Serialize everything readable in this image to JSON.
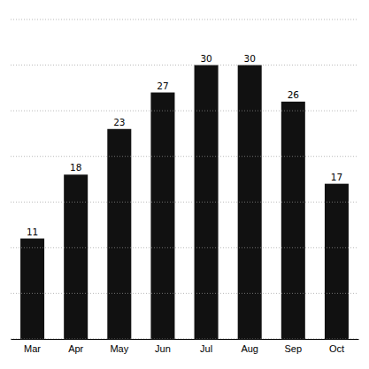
{
  "chart_data": {
    "type": "bar",
    "categories": [
      "Mar",
      "Apr",
      "May",
      "Jun",
      "Jul",
      "Aug",
      "Sep",
      "Oct"
    ],
    "values": [
      11,
      18,
      23,
      27,
      30,
      30,
      26,
      17
    ],
    "color": "#111111",
    "ylim": [
      0,
      35
    ],
    "yticks": [
      0,
      5,
      10,
      15,
      20,
      25,
      30,
      35
    ],
    "grid": true,
    "data_labels": true,
    "tick_labels": "x"
  }
}
